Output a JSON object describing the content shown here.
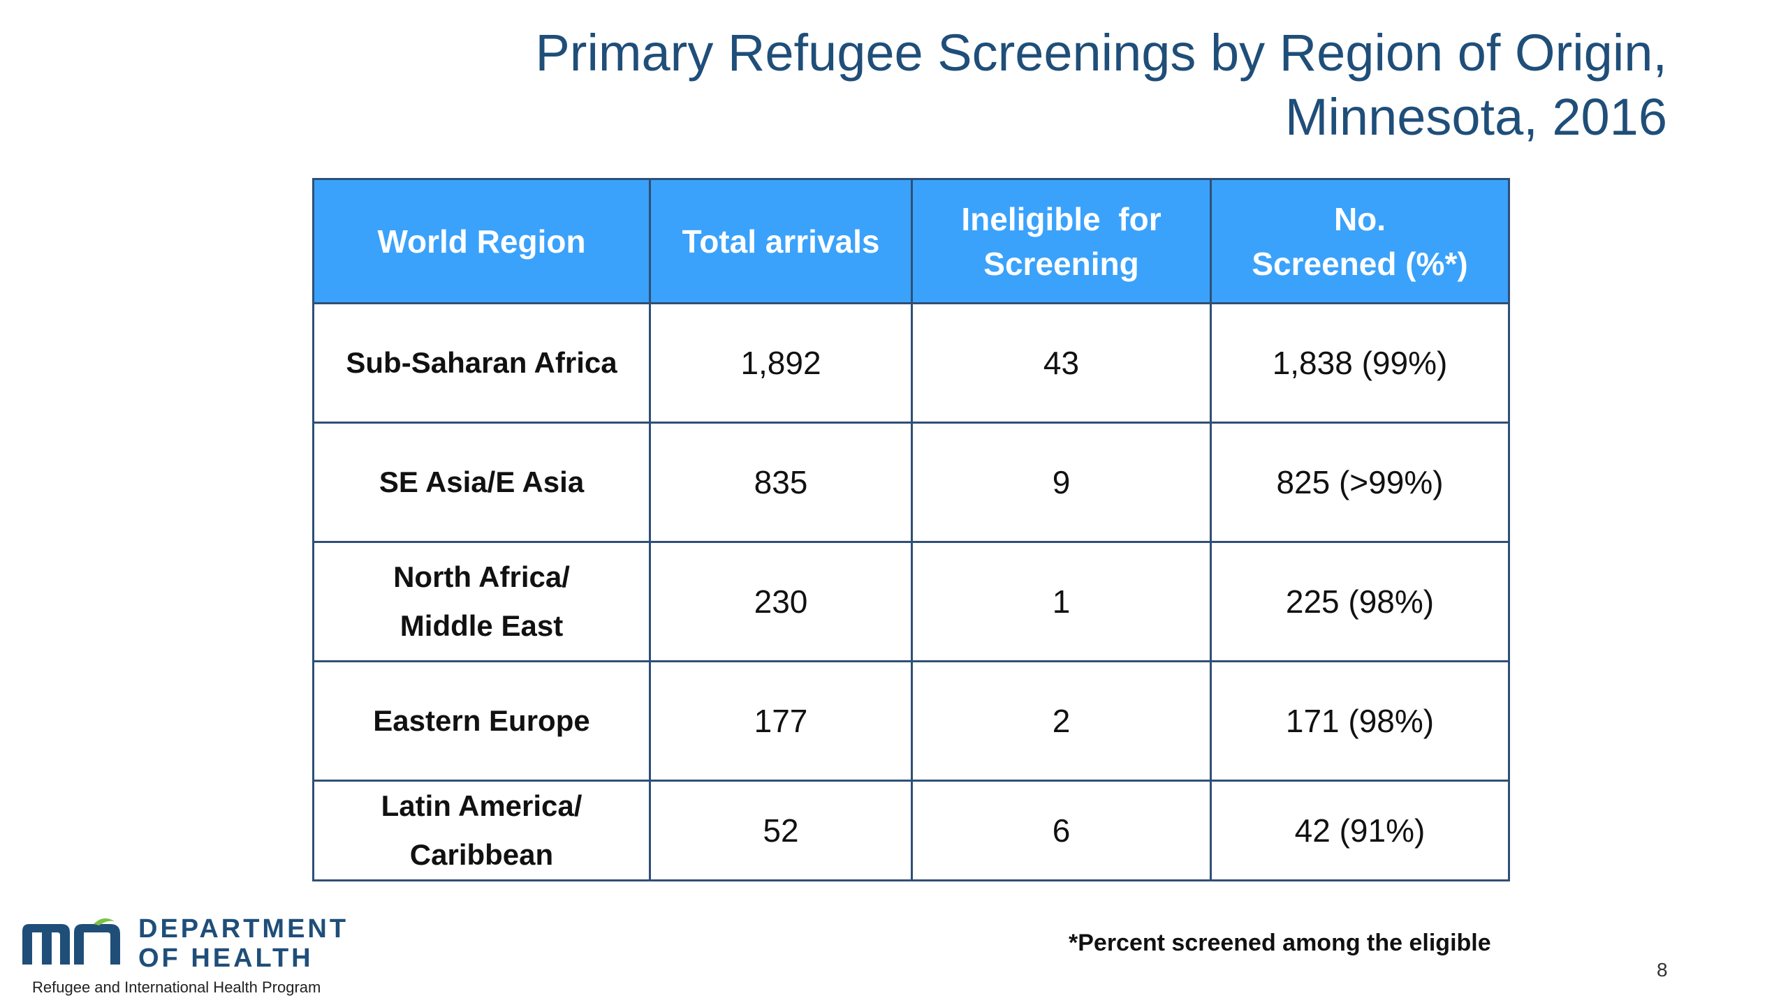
{
  "title": {
    "line1": "Primary Refugee Screenings by Region of Origin,",
    "line2": "Minnesota, 2016"
  },
  "table": {
    "headers": {
      "region_label": "World Region",
      "arrivals": "Total arrivals",
      "ineligible_line1": "Ineligible  for",
      "ineligible_line2": "Screening",
      "screened_line1": "No.",
      "screened_line2": "Screened (%*)"
    },
    "rows": [
      {
        "region_line1": "Sub-Saharan Africa",
        "region_line2": "",
        "arrivals": "1,892",
        "ineligible": "43",
        "screened": "1,838 (99%)"
      },
      {
        "region_line1": "SE Asia/E Asia",
        "region_line2": "",
        "arrivals": "835",
        "ineligible": "9",
        "screened": "825 (>99%)"
      },
      {
        "region_line1": "North Africa/",
        "region_line2": "Middle East",
        "arrivals": "230",
        "ineligible": "1",
        "screened": "225 (98%)"
      },
      {
        "region_line1": "Eastern Europe",
        "region_line2": "",
        "arrivals": "177",
        "ineligible": "2",
        "screened": "171 (98%)"
      },
      {
        "region_line1": "Latin America/",
        "region_line2": "Caribbean",
        "arrivals": "52",
        "ineligible": "6",
        "screened": "42 (91%)"
      }
    ]
  },
  "footnote": "*Percent screened among the eligible",
  "page_number": "8",
  "logo": {
    "line1": "DEPARTMENT",
    "line2": "OF HEALTH",
    "program": "Refugee and International Health Program",
    "color": "#1f4e79"
  },
  "colors": {
    "header_bg": "#3aa2fb",
    "title": "#1f4e79",
    "border": "#2f4f75"
  }
}
